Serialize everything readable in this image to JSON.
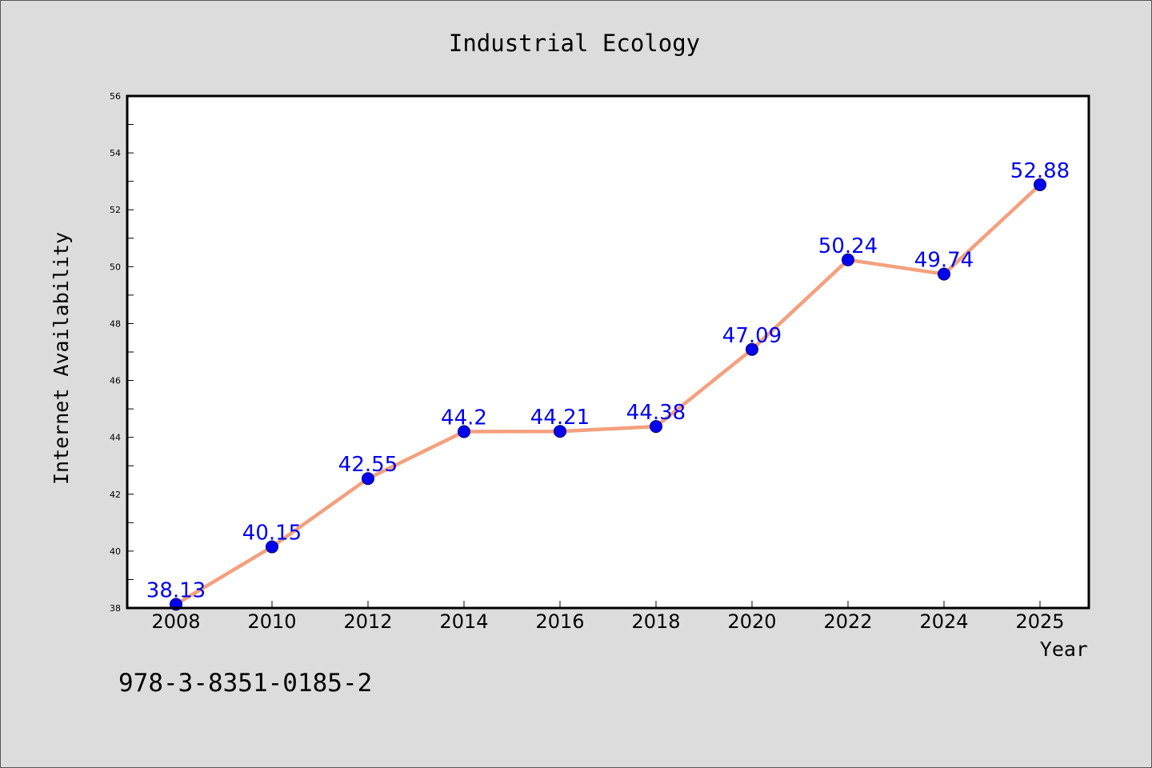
{
  "chart_data": {
    "type": "line",
    "title": "Industrial Ecology",
    "xlabel": "Year",
    "ylabel": "Internet Availability",
    "x": [
      "2008",
      "2010",
      "2012",
      "2014",
      "2016",
      "2018",
      "2020",
      "2022",
      "2024",
      "2025"
    ],
    "series": [
      {
        "values": [
          38.13,
          40.15,
          42.55,
          44.2,
          44.21,
          44.38,
          47.09,
          50.24,
          49.74,
          52.88
        ],
        "data_labels": [
          "38.13",
          "40.15",
          "42.55",
          "44.2",
          "44.21",
          "44.38",
          "47.09",
          "50.24",
          "49.74",
          "52.88"
        ]
      }
    ],
    "yticks": [
      "38",
      "40",
      "42",
      "44",
      "46",
      "48",
      "50",
      "52",
      "54",
      "56"
    ],
    "ylim": [
      38,
      56
    ],
    "grid": false,
    "colors": {
      "line": "#f4a07e",
      "marker": "#0000ee",
      "label": "#0000ee",
      "background": "#dcdcdc",
      "plot_area": "#ffffff"
    }
  },
  "footer_text": "978-3-8351-0185-2"
}
